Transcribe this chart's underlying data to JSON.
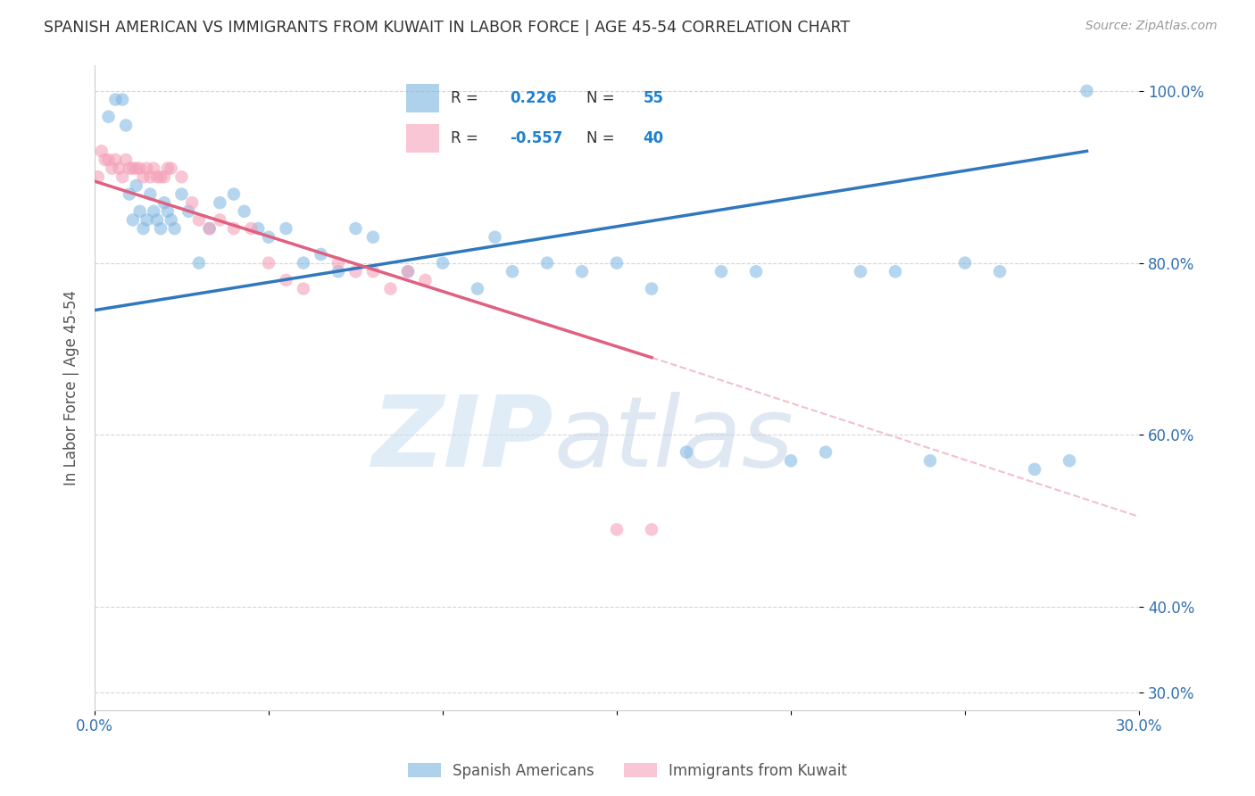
{
  "title": "SPANISH AMERICAN VS IMMIGRANTS FROM KUWAIT IN LABOR FORCE | AGE 45-54 CORRELATION CHART",
  "source": "Source: ZipAtlas.com",
  "ylabel": "In Labor Force | Age 45-54",
  "xlim": [
    0.0,
    0.3
  ],
  "ylim": [
    0.28,
    1.03
  ],
  "xticks": [
    0.0,
    0.05,
    0.1,
    0.15,
    0.2,
    0.25,
    0.3
  ],
  "xticklabels": [
    "0.0%",
    "",
    "",
    "",
    "",
    "",
    "30.0%"
  ],
  "yticks": [
    0.3,
    0.4,
    0.6,
    0.8,
    1.0
  ],
  "yticklabels": [
    "30.0%",
    "40.0%",
    "60.0%",
    "80.0%",
    "100.0%"
  ],
  "blue_color": "#7ab4e0",
  "pink_color": "#f4a0b8",
  "blue_line_color": "#3078be",
  "pink_line_color": "#e06080",
  "pink_dash_color": "#f0b0c0",
  "watermark_zip": "ZIP",
  "watermark_atlas": "atlas",
  "blue_scatter_x": [
    0.004,
    0.006,
    0.008,
    0.009,
    0.01,
    0.011,
    0.012,
    0.013,
    0.014,
    0.015,
    0.016,
    0.017,
    0.018,
    0.019,
    0.02,
    0.021,
    0.022,
    0.023,
    0.025,
    0.027,
    0.03,
    0.033,
    0.036,
    0.04,
    0.043,
    0.047,
    0.05,
    0.055,
    0.06,
    0.065,
    0.07,
    0.075,
    0.08,
    0.09,
    0.1,
    0.11,
    0.115,
    0.12,
    0.13,
    0.14,
    0.15,
    0.16,
    0.17,
    0.18,
    0.19,
    0.2,
    0.21,
    0.22,
    0.23,
    0.24,
    0.25,
    0.26,
    0.27,
    0.28,
    0.285
  ],
  "blue_scatter_y": [
    0.97,
    0.99,
    0.99,
    0.96,
    0.88,
    0.85,
    0.89,
    0.86,
    0.84,
    0.85,
    0.88,
    0.86,
    0.85,
    0.84,
    0.87,
    0.86,
    0.85,
    0.84,
    0.88,
    0.86,
    0.8,
    0.84,
    0.87,
    0.88,
    0.86,
    0.84,
    0.83,
    0.84,
    0.8,
    0.81,
    0.79,
    0.84,
    0.83,
    0.79,
    0.8,
    0.77,
    0.83,
    0.79,
    0.8,
    0.79,
    0.8,
    0.77,
    0.58,
    0.79,
    0.79,
    0.57,
    0.58,
    0.79,
    0.79,
    0.57,
    0.8,
    0.79,
    0.56,
    0.57,
    1.0
  ],
  "pink_scatter_x": [
    0.001,
    0.002,
    0.003,
    0.004,
    0.005,
    0.006,
    0.007,
    0.008,
    0.009,
    0.01,
    0.011,
    0.012,
    0.013,
    0.014,
    0.015,
    0.016,
    0.017,
    0.018,
    0.019,
    0.02,
    0.021,
    0.022,
    0.025,
    0.028,
    0.03,
    0.033,
    0.036,
    0.04,
    0.045,
    0.05,
    0.055,
    0.06,
    0.07,
    0.075,
    0.08,
    0.085,
    0.09,
    0.095,
    0.15,
    0.16
  ],
  "pink_scatter_y": [
    0.9,
    0.93,
    0.92,
    0.92,
    0.91,
    0.92,
    0.91,
    0.9,
    0.92,
    0.91,
    0.91,
    0.91,
    0.91,
    0.9,
    0.91,
    0.9,
    0.91,
    0.9,
    0.9,
    0.9,
    0.91,
    0.91,
    0.9,
    0.87,
    0.85,
    0.84,
    0.85,
    0.84,
    0.84,
    0.8,
    0.78,
    0.77,
    0.8,
    0.79,
    0.79,
    0.77,
    0.79,
    0.78,
    0.49,
    0.49
  ],
  "blue_trendline_x": [
    0.0,
    0.285
  ],
  "blue_trendline_y": [
    0.745,
    0.93
  ],
  "pink_trendline_x": [
    0.0,
    0.16
  ],
  "pink_trendline_y": [
    0.895,
    0.69
  ],
  "pink_dashline_x": [
    0.16,
    0.3
  ],
  "pink_dashline_y": [
    0.69,
    0.505
  ]
}
